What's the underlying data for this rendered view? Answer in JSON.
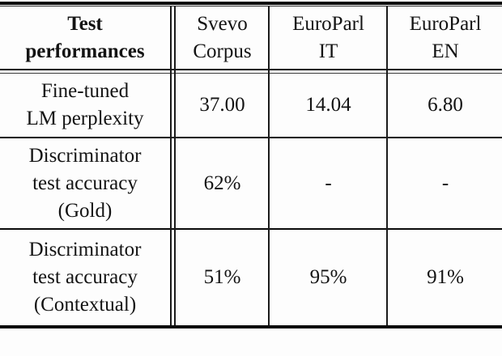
{
  "table": {
    "title_semantic": "test-performances-results-table",
    "header": {
      "label": "Test\nperformances",
      "columns": [
        "Svevo\nCorpus",
        "EuroParl\nIT",
        "EuroParl\nEN"
      ]
    },
    "rows": [
      {
        "label": "Fine-tuned\nLM perplexity",
        "values": [
          "37.00",
          "14.04",
          "6.80"
        ]
      },
      {
        "label": "Discriminator\ntest accuracy\n(Gold)",
        "values": [
          "62%",
          "-",
          "-"
        ]
      },
      {
        "label": "Discriminator\ntest accuracy\n(Contextual)",
        "values": [
          "51%",
          "95%",
          "91%"
        ]
      }
    ],
    "colors": {
      "background": "#fdfdfd",
      "text": "#131313",
      "rule": "#0a0a0a"
    }
  }
}
